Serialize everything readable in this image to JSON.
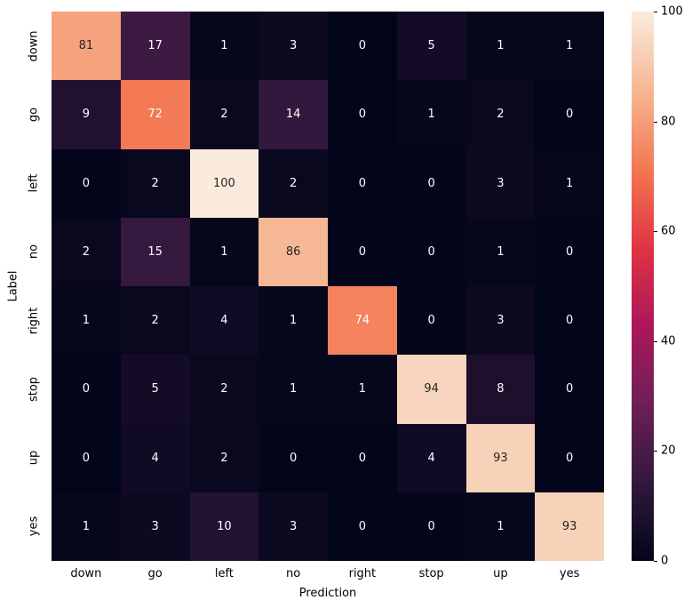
{
  "chart_data": {
    "type": "heatmap",
    "title": "",
    "xlabel": "Prediction",
    "ylabel": "Label",
    "categories_x": [
      "down",
      "go",
      "left",
      "no",
      "right",
      "stop",
      "up",
      "yes"
    ],
    "categories_y": [
      "down",
      "go",
      "left",
      "no",
      "right",
      "stop",
      "up",
      "yes"
    ],
    "values": [
      [
        81,
        17,
        1,
        3,
        0,
        5,
        1,
        1
      ],
      [
        9,
        72,
        2,
        14,
        0,
        1,
        2,
        0
      ],
      [
        0,
        2,
        100,
        2,
        0,
        0,
        3,
        1
      ],
      [
        2,
        15,
        1,
        86,
        0,
        0,
        1,
        0
      ],
      [
        1,
        2,
        4,
        1,
        74,
        0,
        3,
        0
      ],
      [
        0,
        5,
        2,
        1,
        1,
        94,
        8,
        0
      ],
      [
        0,
        4,
        2,
        0,
        0,
        4,
        93,
        0
      ],
      [
        1,
        3,
        10,
        3,
        0,
        0,
        1,
        93
      ]
    ],
    "vmin": 0,
    "vmax": 100,
    "colorbar_ticks": [
      0,
      20,
      40,
      60,
      80,
      100
    ],
    "colormap": "rocket",
    "colormap_stops": [
      [
        0.0,
        "#03051A"
      ],
      [
        0.15,
        "#35193E"
      ],
      [
        0.29,
        "#701F57"
      ],
      [
        0.43,
        "#AD1759"
      ],
      [
        0.57,
        "#E13342"
      ],
      [
        0.71,
        "#F37651"
      ],
      [
        0.85,
        "#F6B48F"
      ],
      [
        1.0,
        "#FAEBDD"
      ]
    ],
    "annotation_text_dark": "#262626",
    "annotation_text_light": "#ffffff",
    "legend_position": "right-colorbar",
    "grid": false
  }
}
